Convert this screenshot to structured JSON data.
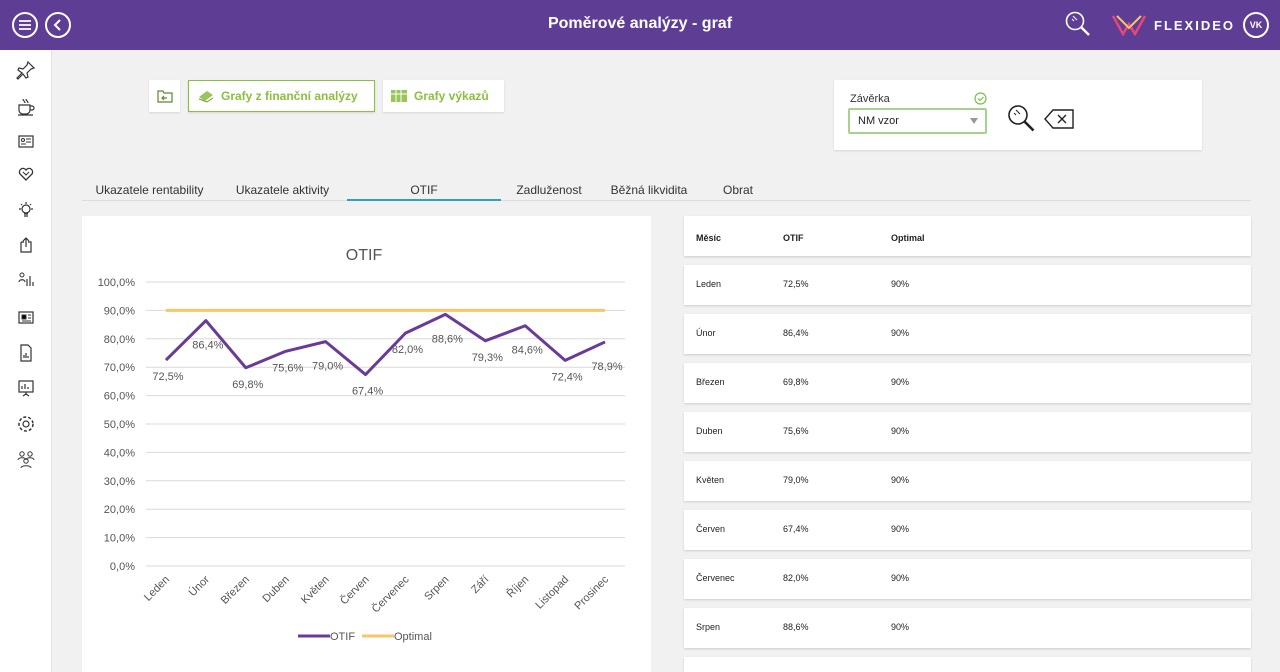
{
  "header": {
    "title": "Poměrové analýzy - graf",
    "brand": "FLEXIDEO",
    "user_initials": "VK"
  },
  "toolbar": {
    "fin_analysis_label": "Grafy z finanční analýzy",
    "reports_label": "Grafy výkazů"
  },
  "filter": {
    "label": "Závěrka",
    "value": "NM vzor"
  },
  "tabs": [
    "Ukazatele rentability",
    "Ukazatele aktivity",
    "OTIF",
    "Zadluženost",
    "Běžná likvidita",
    "Obrat"
  ],
  "table": {
    "headers": [
      "Měsíc",
      "OTIF",
      "Optimal"
    ],
    "rows": [
      [
        "Leden",
        "72,5%",
        "90%"
      ],
      [
        "Únor",
        "86,4%",
        "90%"
      ],
      [
        "Březen",
        "69,8%",
        "90%"
      ],
      [
        "Duben",
        "75,6%",
        "90%"
      ],
      [
        "Květen",
        "79,0%",
        "90%"
      ],
      [
        "Červen",
        "67,4%",
        "90%"
      ],
      [
        "Červenec",
        "82,0%",
        "90%"
      ],
      [
        "Srpen",
        "88,6%",
        "90%"
      ]
    ]
  },
  "chart_data": {
    "type": "line",
    "title": "OTIF",
    "categories": [
      "Leden",
      "Únor",
      "Březen",
      "Duben",
      "Květen",
      "Červen",
      "Červenec",
      "Srpen",
      "Září",
      "Říjen",
      "Listopad",
      "Prosinec"
    ],
    "series": [
      {
        "name": "OTIF",
        "color": "#6a3a99",
        "values": [
          72.5,
          86.4,
          69.8,
          75.6,
          79.0,
          67.4,
          82.0,
          88.6,
          79.3,
          84.6,
          72.4,
          78.9
        ],
        "labels": [
          "72,5%",
          "86,4%",
          "69,8%",
          "75,6%",
          "79,0%",
          "67,4%",
          "82,0%",
          "88,6%",
          "79,3%",
          "84,6%",
          "72,4%",
          "78,9%"
        ]
      },
      {
        "name": "Optimal",
        "color": "#f5c66a",
        "values": [
          90,
          90,
          90,
          90,
          90,
          90,
          90,
          90,
          90,
          90,
          90,
          90
        ]
      }
    ],
    "yticks": [
      "100,0%",
      "90,0%",
      "80,0%",
      "70,0%",
      "60,0%",
      "50,0%",
      "40,0%",
      "30,0%",
      "20,0%",
      "10,0%",
      "0,0%"
    ],
    "ylim": [
      0,
      100
    ],
    "grid": true,
    "legend": "bottom"
  }
}
